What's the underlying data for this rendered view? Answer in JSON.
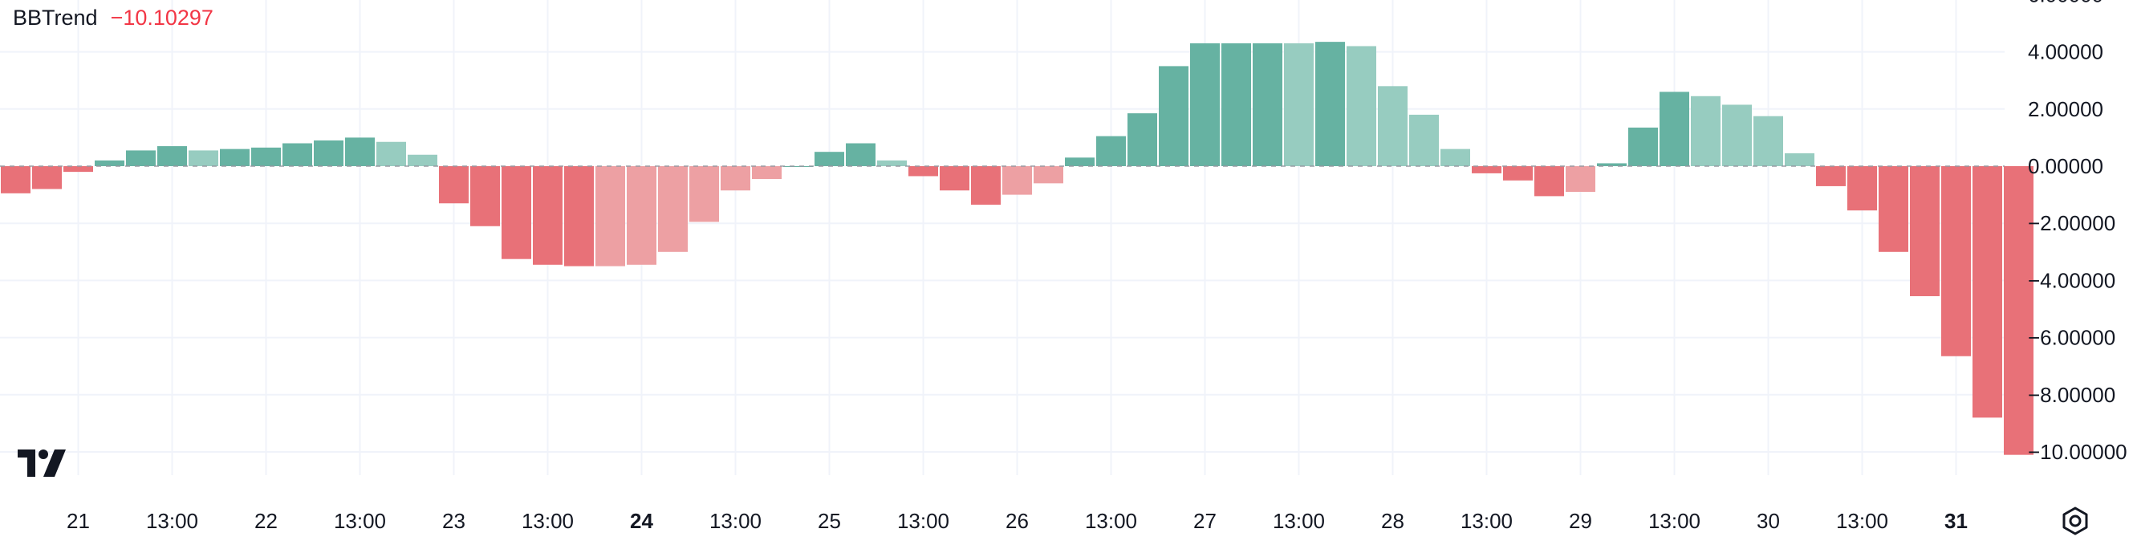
{
  "legend": {
    "name": "BBTrend",
    "value": "−10.10297"
  },
  "icons": {
    "logo": "tradingview-logo-icon",
    "settings": "settings-icon"
  },
  "colors": {
    "up_strong": "#66b2a2",
    "up_weak": "#97ccc0",
    "down_strong": "#e87178",
    "down_weak": "#eda0a3",
    "grid": "#f0f3fa",
    "text": "#131722",
    "legend_value": "#f23645"
  },
  "chart_data": {
    "type": "bar",
    "title": "BBTrend",
    "y_ticks": [
      "−10.00000",
      "−8.00000",
      "−6.00000",
      "−4.00000",
      "−2.00000",
      "0.00000",
      "2.00000",
      "4.00000"
    ],
    "y_tick_values": [
      -10,
      -8,
      -6,
      -4,
      -2,
      0,
      2,
      4
    ],
    "ylim": [
      -10.5,
      5.8
    ],
    "x_ticks": [
      {
        "label": "21",
        "bar": 2,
        "bold": false
      },
      {
        "label": "13:00",
        "bar": 5,
        "bold": false
      },
      {
        "label": "22",
        "bar": 8,
        "bold": false
      },
      {
        "label": "13:00",
        "bar": 11,
        "bold": false
      },
      {
        "label": "23",
        "bar": 14,
        "bold": false
      },
      {
        "label": "13:00",
        "bar": 17,
        "bold": false
      },
      {
        "label": "24",
        "bar": 20,
        "bold": true
      },
      {
        "label": "13:00",
        "bar": 23,
        "bold": false
      },
      {
        "label": "25",
        "bar": 26,
        "bold": false
      },
      {
        "label": "13:00",
        "bar": 29,
        "bold": false
      },
      {
        "label": "26",
        "bar": 32,
        "bold": false
      },
      {
        "label": "13:00",
        "bar": 35,
        "bold": false
      },
      {
        "label": "27",
        "bar": 38,
        "bold": false
      },
      {
        "label": "13:00",
        "bar": 41,
        "bold": false
      },
      {
        "label": "28",
        "bar": 44,
        "bold": false
      },
      {
        "label": "13:00",
        "bar": 47,
        "bold": false
      },
      {
        "label": "29",
        "bar": 50,
        "bold": false
      },
      {
        "label": "13:00",
        "bar": 53,
        "bold": false
      },
      {
        "label": "30",
        "bar": 56,
        "bold": false
      },
      {
        "label": "13:00",
        "bar": 59,
        "bold": false
      },
      {
        "label": "31",
        "bar": 62,
        "bold": true
      }
    ],
    "grid": true,
    "zero_line": "dashed",
    "series": [
      {
        "values": [
          -0.95,
          -0.8,
          -0.2,
          0.2,
          0.55,
          0.7,
          0.55,
          0.6,
          0.65,
          0.8,
          0.9,
          1.0,
          0.85,
          0.4,
          -1.3,
          -2.1,
          -3.25,
          -3.45,
          -3.5,
          -3.5,
          -3.45,
          -3.0,
          -1.95,
          -0.85,
          -0.45,
          0.0,
          0.5,
          0.8,
          0.2,
          -0.35,
          -0.85,
          -1.35,
          -1.0,
          -0.6,
          0.3,
          1.05,
          1.85,
          3.5,
          4.3,
          4.3,
          4.3,
          4.3,
          4.35,
          4.2,
          2.8,
          1.8,
          0.6,
          -0.25,
          -0.5,
          -1.05,
          -0.9,
          0.1,
          1.35,
          2.6,
          2.45,
          2.15,
          1.75,
          0.45,
          -0.7,
          -1.55,
          -3.0,
          -4.55,
          -6.65,
          -8.8,
          -10.10297
        ],
        "color_codes": [
          "ds",
          "ds",
          "ds",
          "us",
          "us",
          "us",
          "uw",
          "us",
          "us",
          "us",
          "us",
          "us",
          "uw",
          "uw",
          "ds",
          "ds",
          "ds",
          "ds",
          "ds",
          "dw",
          "dw",
          "dw",
          "dw",
          "dw",
          "dw",
          "us",
          "us",
          "us",
          "uw",
          "ds",
          "ds",
          "ds",
          "dw",
          "dw",
          "us",
          "us",
          "us",
          "us",
          "us",
          "us",
          "us",
          "uw",
          "us",
          "uw",
          "uw",
          "uw",
          "uw",
          "ds",
          "ds",
          "ds",
          "dw",
          "us",
          "us",
          "us",
          "uw",
          "uw",
          "uw",
          "uw",
          "ds",
          "ds",
          "ds",
          "ds",
          "ds",
          "ds",
          "ds"
        ]
      }
    ]
  }
}
